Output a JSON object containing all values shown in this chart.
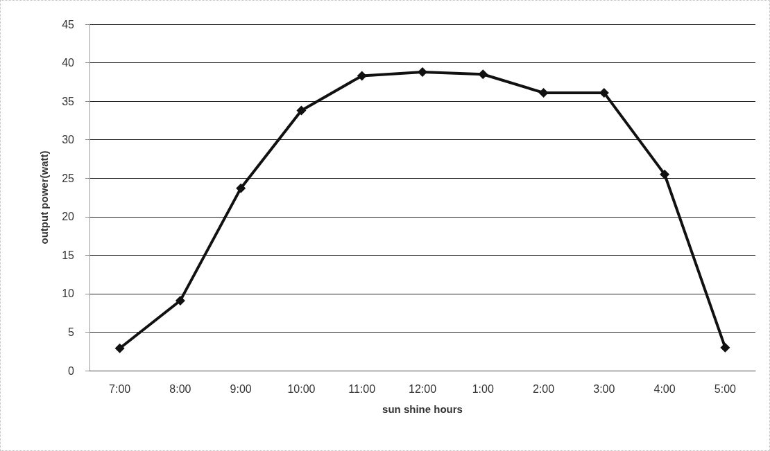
{
  "chart_data": {
    "type": "line",
    "xlabel": "sun shine hours",
    "ylabel": "output power(watt)",
    "categories": [
      "7:00",
      "8:00",
      "9:00",
      "10:00",
      "11:00",
      "12:00",
      "1:00",
      "2:00",
      "3:00",
      "4:00",
      "5:00"
    ],
    "series": [
      {
        "color": "#111111",
        "values": [
          2.9,
          9.1,
          23.7,
          33.8,
          38.3,
          38.8,
          38.5,
          36.1,
          36.1,
          25.5,
          3.0
        ]
      }
    ],
    "ylim": [
      0,
      45
    ],
    "yticks": [
      0,
      5,
      10,
      15,
      20,
      25,
      30,
      35,
      40,
      45
    ],
    "grid": "y",
    "marker": "diamond",
    "line_style": "solid"
  }
}
